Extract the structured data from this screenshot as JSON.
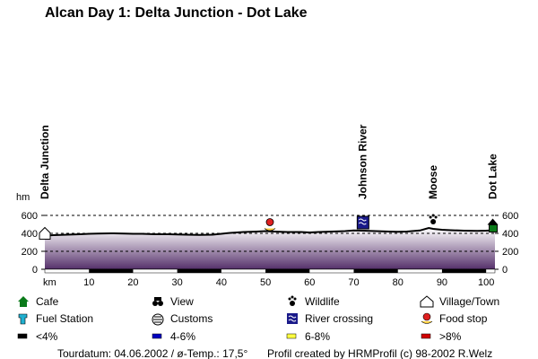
{
  "chart_data": {
    "type": "area",
    "title": "Alcan Day 1: Delta Junction - Dot Lake",
    "y_unit": "hm",
    "x_unit": "km",
    "ylim": [
      0,
      600
    ],
    "xlim": [
      0,
      102
    ],
    "y_ticks": [
      0,
      200,
      400,
      600
    ],
    "x_ticks": [
      10,
      20,
      30,
      40,
      50,
      60,
      70,
      80,
      90,
      100
    ],
    "grid": "dashed line at 600",
    "series": [
      {
        "x": [
          0,
          2,
          5,
          8,
          10,
          12,
          15,
          18,
          20,
          22,
          25,
          28,
          30,
          32,
          35,
          38,
          40,
          42,
          45,
          48,
          50,
          52,
          55,
          58,
          60,
          62,
          65,
          68,
          70,
          72,
          75,
          78,
          80,
          82,
          85,
          87,
          88,
          90,
          92,
          95,
          98,
          100,
          102
        ],
        "values": [
          375,
          380,
          385,
          390,
          395,
          398,
          400,
          398,
          395,
          395,
          390,
          390,
          388,
          385,
          382,
          385,
          395,
          405,
          415,
          420,
          425,
          420,
          415,
          415,
          410,
          415,
          420,
          425,
          432,
          430,
          425,
          420,
          418,
          420,
          432,
          460,
          450,
          440,
          435,
          430,
          428,
          430,
          435
        ]
      }
    ],
    "places": [
      {
        "name": "Delta Junction",
        "km": 0,
        "icon": "village-town"
      },
      {
        "name": "Johnson River",
        "km": 72,
        "icon": "river-crossing"
      },
      {
        "name": "Moose",
        "km": 88,
        "icon": "wildlife"
      },
      {
        "name": "Dot Lake",
        "km": 101.5,
        "icon": "cafe"
      }
    ],
    "food_stop_km": 51,
    "km_bar_dark_segments": [
      [
        10,
        20
      ],
      [
        30,
        40
      ],
      [
        50,
        60
      ],
      [
        70,
        80
      ],
      [
        90,
        100
      ]
    ]
  },
  "legend": [
    {
      "label": "Cafe",
      "icon": "cafe-icon"
    },
    {
      "label": "View",
      "icon": "binoculars-icon"
    },
    {
      "label": "Wildlife",
      "icon": "paw-icon"
    },
    {
      "label": "Village/Town",
      "icon": "house-icon"
    },
    {
      "label": "Fuel Station",
      "icon": "fuel-icon"
    },
    {
      "label": "Customs",
      "icon": "customs-icon"
    },
    {
      "label": "River crossing",
      "icon": "river-icon"
    },
    {
      "label": "Food stop",
      "icon": "food-icon"
    },
    {
      "label": "<4%",
      "color": "#000000"
    },
    {
      "label": "4-6%",
      "color": "#0000c0"
    },
    {
      "label": "6-8%",
      "color": "#ffff40"
    },
    {
      "label": ">8%",
      "color": "#d00000"
    }
  ],
  "footer": {
    "left": "Tourdatum: 04.06.2002  /  ø-Temp.: 17,5°",
    "right": "Profil created by HRMProfil (c) 98-2002 R.Welz"
  },
  "colors": {
    "fill_top": "#ffffff",
    "fill_bottom": "#55306a",
    "outline": "#000000"
  }
}
